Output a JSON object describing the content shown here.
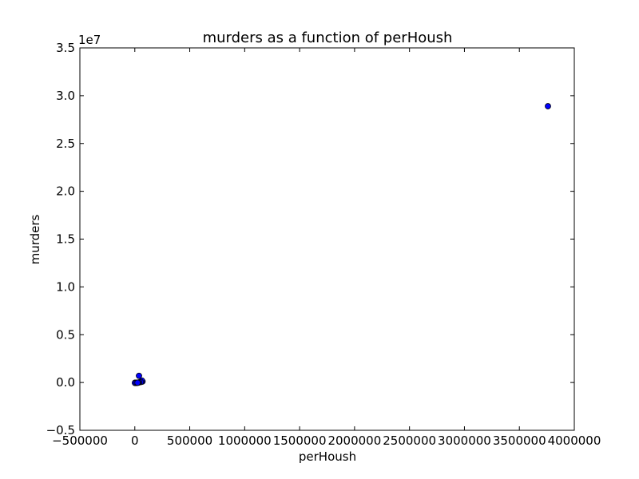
{
  "chart_data": {
    "type": "scatter",
    "title": "murders as a function of perHoush",
    "xlabel": "perHoush",
    "ylabel": "murders",
    "y_offset_label": "1e7",
    "xlim": [
      -500000,
      4000000
    ],
    "ylim": [
      -0.5,
      3.5
    ],
    "x_ticks": [
      -500000,
      0,
      500000,
      1000000,
      1500000,
      2000000,
      2500000,
      3000000,
      3500000,
      4000000
    ],
    "x_tick_labels": [
      "−500000",
      "0",
      "500000",
      "1000000",
      "1500000",
      "2000000",
      "2500000",
      "3000000",
      "3500000",
      "4000000"
    ],
    "y_ticks": [
      -0.5,
      0.0,
      0.5,
      1.0,
      1.5,
      2.0,
      2.5,
      3.0,
      3.5
    ],
    "y_tick_labels": [
      "−0.5",
      "0.0",
      "0.5",
      "1.0",
      "1.5",
      "2.0",
      "2.5",
      "3.0",
      "3.5"
    ],
    "grid": false,
    "marker_color": "#0000ff",
    "marker_edge": "#000000",
    "series": [
      {
        "x": [
          3760000,
          38000,
          70000,
          65000,
          55000,
          40000,
          30000,
          20000,
          12000,
          8000,
          5000,
          3000,
          2000,
          1000,
          15000,
          25000
        ],
        "y": [
          2.89,
          0.07,
          0.01,
          0.02,
          0.005,
          0.002,
          -0.002,
          -0.003,
          -0.004,
          -0.005,
          -0.004,
          -0.003,
          -0.002,
          -0.004,
          -0.003,
          -0.002
        ]
      }
    ]
  }
}
